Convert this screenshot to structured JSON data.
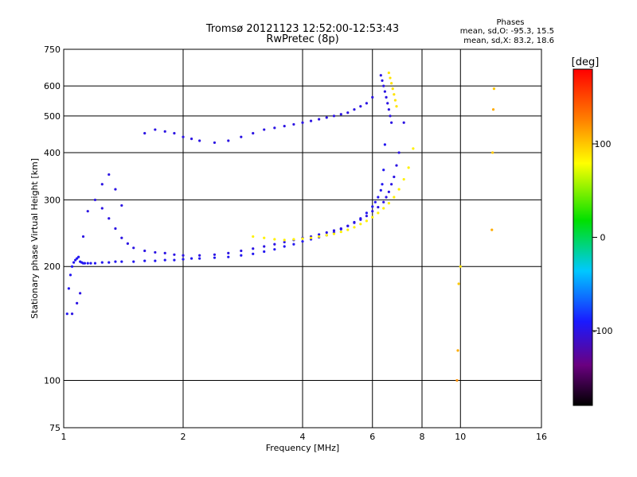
{
  "chart_data": {
    "type": "scatter",
    "title": "Tromsø 20121123 12:52:00-12:53:43",
    "subtitle": "RwPretec (8p)",
    "xlabel": "Frequency [MHz]",
    "ylabel": "Stationary phase Virtual Height [km]",
    "x_scale": "log",
    "y_scale": "log",
    "xlim": [
      1,
      16
    ],
    "ylim": [
      75,
      750
    ],
    "x_ticks": [
      1,
      2,
      4,
      6,
      8,
      10,
      16
    ],
    "x_tick_labels": [
      "1",
      "2",
      "4",
      "6",
      "8",
      "10",
      "16"
    ],
    "y_ticks": [
      75,
      100,
      200,
      300,
      400,
      500,
      600,
      750
    ],
    "y_tick_labels": [
      "75",
      "100",
      "200",
      "300",
      "400",
      "500",
      "600",
      "750"
    ],
    "grid": true,
    "stats": {
      "heading": "Phases",
      "line_o": "mean, sd,O: -95.3, 15.5",
      "line_x": "mean, sd,X:  83.2, 18.6"
    },
    "colorbar": {
      "label": "[deg]",
      "range": [
        -180,
        180
      ],
      "ticks": [
        100,
        0,
        -100
      ],
      "tick_labels": [
        "100",
        "0",
        "-100"
      ]
    },
    "series": [
      {
        "x": [
          1.02,
          1.03,
          1.04,
          1.05,
          1.06,
          1.07,
          1.08,
          1.09,
          1.1,
          1.11,
          1.12,
          1.13,
          1.15,
          1.17,
          1.2,
          1.25,
          1.3,
          1.35,
          1.4,
          1.5,
          1.6,
          1.7,
          1.8,
          1.9,
          2.0,
          2.1,
          2.2,
          2.4,
          2.6,
          2.8,
          3.0,
          3.2,
          3.4,
          3.6,
          3.8,
          4.0,
          4.2,
          4.4,
          4.6,
          4.8,
          5.0,
          5.2,
          5.4,
          5.6,
          5.8,
          6.0,
          6.1,
          6.2,
          6.3,
          6.35,
          6.4,
          6.45
        ],
        "y": [
          150,
          175,
          190,
          200,
          205,
          208,
          210,
          212,
          206,
          205,
          204,
          204,
          204,
          204,
          204,
          205,
          205,
          206,
          206,
          206,
          207,
          207,
          208,
          208,
          209,
          210,
          210,
          211,
          212,
          214,
          216,
          219,
          222,
          226,
          229,
          233,
          236,
          239,
          242,
          246,
          251,
          256,
          262,
          268,
          277,
          288,
          296,
          305,
          318,
          330,
          360,
          420
        ],
        "phase": [
          -95,
          -95,
          -95,
          -95,
          -95,
          -95,
          -95,
          -95,
          -95,
          -95,
          -95,
          -95,
          -95,
          -95,
          -95,
          -95,
          -95,
          -95,
          -95,
          -95,
          -95,
          -95,
          -95,
          -95,
          -95,
          -95,
          -95,
          -95,
          -95,
          -95,
          -95,
          -95,
          -95,
          -95,
          -95,
          -95,
          -95,
          -95,
          -95,
          -95,
          -95,
          -95,
          -95,
          -95,
          -95,
          -95,
          -95,
          -95,
          -95,
          -95,
          -95,
          -95
        ]
      },
      {
        "x": [
          1.25,
          1.3,
          1.35,
          1.4,
          1.45,
          1.5,
          1.6,
          1.7,
          1.8,
          1.9,
          2.0,
          2.2,
          2.4,
          2.6,
          2.8,
          3.0,
          3.2,
          3.4,
          3.6,
          3.8,
          4.0,
          4.2,
          4.4,
          4.6,
          4.8,
          5.0,
          5.2,
          5.4,
          5.6,
          5.8,
          6.0,
          6.2,
          6.4,
          6.5,
          6.6,
          6.7,
          6.8,
          6.9,
          7.0,
          7.2
        ],
        "y": [
          285,
          268,
          252,
          238,
          230,
          224,
          220,
          218,
          217,
          215,
          214,
          214,
          215,
          217,
          220,
          223,
          226,
          229,
          232,
          235,
          238,
          240,
          243,
          246,
          249,
          252,
          256,
          261,
          266,
          272,
          280,
          287,
          296,
          305,
          315,
          330,
          345,
          370,
          400,
          480
        ],
        "phase": [
          -100,
          -100,
          -100,
          -100,
          -100,
          -100,
          -100,
          -100,
          -100,
          -100,
          -100,
          -100,
          -100,
          -100,
          -100,
          -100,
          -100,
          -100,
          -100,
          -100,
          -100,
          -100,
          -100,
          -100,
          -100,
          -100,
          -100,
          -100,
          -100,
          -100,
          -100,
          -100,
          -100,
          -100,
          -100,
          -100,
          -100,
          -100,
          -100,
          -100
        ]
      },
      {
        "x": [
          3.0,
          3.2,
          3.4,
          3.6,
          3.8,
          4.0,
          4.2,
          4.4,
          4.6,
          4.8,
          5.0,
          5.2,
          5.4,
          5.6,
          5.8,
          6.0,
          6.2,
          6.4,
          6.6,
          6.8,
          7.0,
          7.2,
          7.4,
          7.6
        ],
        "y": [
          240,
          238,
          236,
          235,
          236,
          237,
          238,
          240,
          242,
          244,
          247,
          250,
          254,
          259,
          264,
          270,
          277,
          285,
          294,
          305,
          320,
          340,
          365,
          410
        ],
        "phase": [
          85,
          85,
          85,
          85,
          85,
          85,
          85,
          85,
          85,
          85,
          85,
          85,
          85,
          85,
          85,
          85,
          85,
          85,
          85,
          85,
          85,
          85,
          85,
          85
        ]
      },
      {
        "x": [
          1.05,
          1.08,
          1.1,
          1.12,
          1.15,
          1.2,
          1.25,
          1.3,
          1.35,
          1.4
        ],
        "y": [
          150,
          160,
          170,
          240,
          280,
          300,
          330,
          350,
          320,
          290
        ],
        "phase": [
          -100,
          -100,
          -100,
          -100,
          -100,
          -100,
          -100,
          -100,
          -100,
          -100
        ]
      },
      {
        "x": [
          1.6,
          1.7,
          1.8,
          1.9,
          2.0,
          2.1,
          2.2,
          2.4,
          2.6,
          2.8,
          3.0,
          3.2,
          3.4,
          3.6,
          3.8,
          4.0,
          4.2,
          4.4,
          4.6,
          4.8,
          5.0,
          5.2,
          5.4,
          5.6,
          5.8,
          6.0
        ],
        "y": [
          450,
          460,
          455,
          450,
          440,
          435,
          430,
          425,
          430,
          440,
          450,
          460,
          465,
          470,
          475,
          480,
          485,
          490,
          495,
          500,
          505,
          510,
          520,
          530,
          540,
          560
        ],
        "phase": [
          -100,
          -100,
          -100,
          -100,
          -100,
          -100,
          -100,
          -100,
          -100,
          -100,
          -100,
          -100,
          -100,
          -100,
          -100,
          -100,
          -100,
          -100,
          -100,
          -100,
          -100,
          -100,
          -100,
          -100,
          -100,
          -100
        ]
      },
      {
        "x": [
          6.3,
          6.35,
          6.4,
          6.45,
          6.5,
          6.55,
          6.6,
          6.65,
          6.7
        ],
        "y": [
          640,
          620,
          600,
          580,
          560,
          540,
          520,
          500,
          480
        ],
        "phase": [
          -100,
          -100,
          -100,
          -100,
          -100,
          -100,
          -100,
          -100,
          -100
        ]
      },
      {
        "x": [
          6.6,
          6.65,
          6.7,
          6.75,
          6.8,
          6.85,
          6.9
        ],
        "y": [
          650,
          630,
          610,
          590,
          570,
          550,
          530
        ],
        "phase": [
          90,
          90,
          90,
          90,
          90,
          90,
          90
        ]
      },
      {
        "x": [
          9.8,
          9.85,
          9.9,
          10.0,
          12.0,
          12.05,
          12.1,
          12.15
        ],
        "y": [
          100,
          120,
          180,
          200,
          250,
          400,
          520,
          590
        ],
        "phase": [
          120,
          110,
          100,
          90,
          110,
          100,
          110,
          100
        ]
      }
    ]
  }
}
